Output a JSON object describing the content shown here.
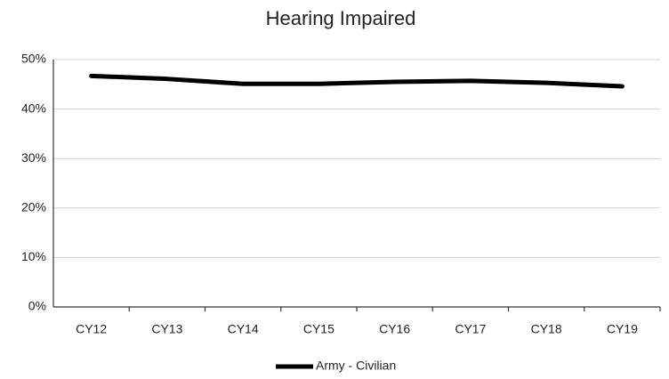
{
  "chart_data": {
    "type": "line",
    "title": "Hearing Impaired",
    "categories": [
      "CY12",
      "CY13",
      "CY14",
      "CY15",
      "CY16",
      "CY17",
      "CY18",
      "CY19"
    ],
    "series": [
      {
        "name": "Army - Civilian",
        "color": "#000000",
        "values": [
          46.7,
          46.1,
          45.1,
          45.1,
          45.5,
          45.7,
          45.3,
          44.6
        ]
      }
    ],
    "ylim": [
      0,
      50
    ],
    "yticks": [
      {
        "value": 0,
        "label": "0%"
      },
      {
        "value": 10,
        "label": "10%"
      },
      {
        "value": 20,
        "label": "20%"
      },
      {
        "value": 30,
        "label": "30%"
      },
      {
        "value": 40,
        "label": "40%"
      },
      {
        "value": 50,
        "label": "50%"
      }
    ],
    "grid": true,
    "legend": "bottom"
  }
}
